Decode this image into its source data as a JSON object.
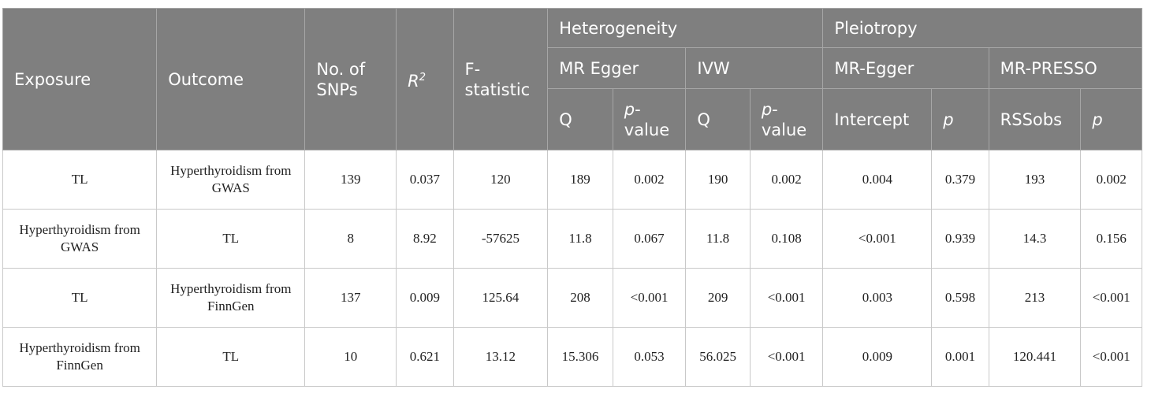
{
  "header": {
    "exposure": "Exposure",
    "outcome": "Outcome",
    "snps": "No. of SNPs",
    "r2_base": "R",
    "r2_sup": "2",
    "fstat": "F-statistic",
    "heterogeneity": "Heterogeneity",
    "pleiotropy": "Pleiotropy",
    "mr_egger_het": "MR Egger",
    "ivw": "IVW",
    "mr_egger_pleio": "MR-Egger",
    "mr_presso": "MR-PRESSO",
    "q1": "Q",
    "pvalue1_italic": "p",
    "pvalue1_rest": "-value",
    "q2": "Q",
    "pvalue2_italic": "p",
    "pvalue2_rest": "-value",
    "intercept": "Intercept",
    "p1": "p",
    "rssobs": "RSSobs",
    "p2": "p"
  },
  "rows": [
    {
      "exposure": "TL",
      "outcome": "Hyperthyroidism from GWAS",
      "snps": "139",
      "r2": "0.037",
      "f": "120",
      "egger_q": "189",
      "egger_p": "0.002",
      "ivw_q": "190",
      "ivw_p": "0.002",
      "intercept": "0.004",
      "intercept_p": "0.379",
      "rssobs": "193",
      "presso_p": "0.002"
    },
    {
      "exposure": "Hyperthyroidism from GWAS",
      "outcome": "TL",
      "snps": "8",
      "r2": "8.92",
      "f": "-57625",
      "egger_q": "11.8",
      "egger_p": "0.067",
      "ivw_q": "11.8",
      "ivw_p": "0.108",
      "intercept": "<0.001",
      "intercept_p": "0.939",
      "rssobs": "14.3",
      "presso_p": "0.156"
    },
    {
      "exposure": "TL",
      "outcome": "Hyperthyroidism from FinnGen",
      "snps": "137",
      "r2": "0.009",
      "f": "125.64",
      "egger_q": "208",
      "egger_p": "<0.001",
      "ivw_q": "209",
      "ivw_p": "<0.001",
      "intercept": "0.003",
      "intercept_p": "0.598",
      "rssobs": "213",
      "presso_p": "<0.001"
    },
    {
      "exposure": "Hyperthyroidism from FinnGen",
      "outcome": "TL",
      "snps": "10",
      "r2": "0.621",
      "f": "13.12",
      "egger_q": "15.306",
      "egger_p": "0.053",
      "ivw_q": "56.025",
      "ivw_p": "<0.001",
      "intercept": "0.009",
      "intercept_p": "0.001",
      "rssobs": "120.441",
      "presso_p": "<0.001"
    }
  ]
}
